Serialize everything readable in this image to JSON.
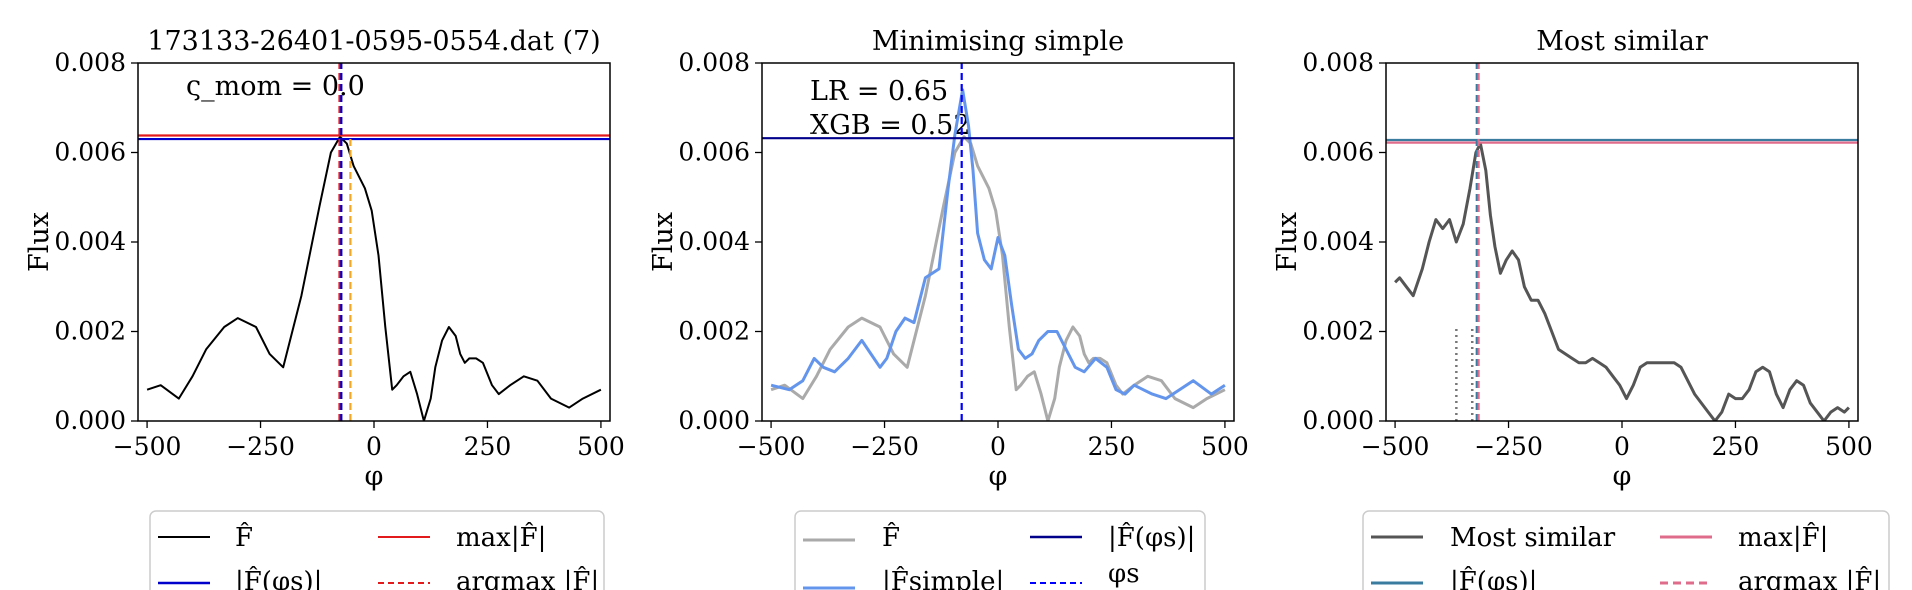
{
  "panels": [
    {
      "title": "173133-26401-0595-0554.dat (7)",
      "annotations": [
        "ς_mom = 0.0"
      ],
      "ylabel": "Flux",
      "xlabel": "φ",
      "legend": [
        {
          "label": "F̂",
          "color": "#000000",
          "dash": "solid"
        },
        {
          "label": "max|F̂|",
          "color": "#e31a1c",
          "dash": "solid"
        },
        {
          "label": "|F̂(φs)|",
          "color": "#0000cc",
          "dash": "solid"
        },
        {
          "label": "argmax |F̂|",
          "color": "#e31a1c",
          "dash": "dashed"
        }
      ]
    },
    {
      "title": "Minimising simple",
      "annotations": [
        "LR = 0.65",
        "XGB = 0.52"
      ],
      "ylabel": "Flux",
      "xlabel": "φ",
      "legend": [
        {
          "label": "F̂",
          "color": "#aaaaaa",
          "dash": "solid"
        },
        {
          "label": "|F̂(φs)|",
          "color": "#00008b",
          "dash": "solid"
        },
        {
          "label": "|F̂simple|",
          "color": "#6495ed",
          "dash": "solid"
        },
        {
          "label": "φs",
          "color": "#0000ff",
          "dash": "dashed"
        }
      ]
    },
    {
      "title": "Most similar",
      "annotations": [],
      "ylabel": "Flux",
      "xlabel": "φ",
      "legend": [
        {
          "label": "Most similar",
          "color": "#555555",
          "dash": "solid"
        },
        {
          "label": "max|F̂|",
          "color": "#e06c8c",
          "dash": "solid"
        },
        {
          "label": "|F̂(φs)|",
          "color": "#3a7ca0",
          "dash": "solid"
        },
        {
          "label": "argmax |F̂|",
          "color": "#e06c8c",
          "dash": "dashed"
        }
      ]
    }
  ],
  "chart_data": [
    {
      "type": "line",
      "title": "173133-26401-0595-0554.dat (7)",
      "xlabel": "φ",
      "ylabel": "Flux",
      "xlim": [
        -520,
        520
      ],
      "ylim": [
        0,
        0.008
      ],
      "xticks": [
        -500,
        -250,
        0,
        250,
        500
      ],
      "yticks": [
        0.0,
        0.002,
        0.004,
        0.006,
        0.008
      ],
      "series": [
        {
          "name": "F̂",
          "color": "#000000",
          "x": [
            -500,
            -470,
            -430,
            -400,
            -370,
            -330,
            -300,
            -260,
            -230,
            -200,
            -160,
            -120,
            -95,
            -75,
            -60,
            -45,
            -20,
            -5,
            10,
            25,
            40,
            50,
            65,
            80,
            95,
            110,
            125,
            135,
            150,
            165,
            180,
            190,
            200,
            210,
            225,
            240,
            260,
            275,
            300,
            330,
            360,
            390,
            410,
            430,
            460,
            500
          ],
          "y": [
            0.0007,
            0.0008,
            0.0005,
            0.001,
            0.0016,
            0.0021,
            0.0023,
            0.0021,
            0.0015,
            0.0012,
            0.0028,
            0.0048,
            0.006,
            0.00635,
            0.0062,
            0.0057,
            0.0052,
            0.0047,
            0.0037,
            0.0021,
            0.0007,
            0.0008,
            0.001,
            0.0011,
            0.0006,
            0.0,
            0.0005,
            0.0012,
            0.0018,
            0.0021,
            0.0019,
            0.0015,
            0.0013,
            0.0014,
            0.0014,
            0.0013,
            0.0008,
            0.0006,
            0.0008,
            0.001,
            0.0009,
            0.0005,
            0.0004,
            0.0003,
            0.0005,
            0.0007
          ]
        }
      ],
      "hlines": [
        {
          "y": 0.00638,
          "color": "#e31a1c",
          "dash": "solid"
        },
        {
          "y": 0.0063,
          "color": "#0000cc",
          "dash": "solid"
        }
      ],
      "vlines": [
        {
          "x": -76,
          "color": "#e31a1c",
          "dash": "dashed"
        },
        {
          "x": -72,
          "color": "#0000cc",
          "dash": "dashed"
        },
        {
          "x": -52,
          "color": "#f5a623",
          "dash": "dashed",
          "y_top": 0.00638
        }
      ]
    },
    {
      "type": "line",
      "title": "Minimising simple",
      "xlabel": "φ",
      "ylabel": "Flux",
      "xlim": [
        -520,
        520
      ],
      "ylim": [
        0,
        0.008
      ],
      "xticks": [
        -500,
        -250,
        0,
        250,
        500
      ],
      "yticks": [
        0.0,
        0.002,
        0.004,
        0.006,
        0.008
      ],
      "series": [
        {
          "name": "F̂",
          "color": "#aaaaaa",
          "x": [
            -500,
            -470,
            -430,
            -400,
            -370,
            -330,
            -300,
            -260,
            -230,
            -200,
            -160,
            -120,
            -95,
            -75,
            -60,
            -45,
            -20,
            -5,
            10,
            25,
            40,
            50,
            65,
            80,
            95,
            110,
            125,
            135,
            150,
            165,
            180,
            190,
            200,
            210,
            225,
            240,
            260,
            275,
            300,
            330,
            360,
            390,
            410,
            430,
            460,
            500
          ],
          "y": [
            0.0007,
            0.0008,
            0.0005,
            0.001,
            0.0016,
            0.0021,
            0.0023,
            0.0021,
            0.0015,
            0.0012,
            0.0028,
            0.0048,
            0.006,
            0.00635,
            0.0062,
            0.0057,
            0.0052,
            0.0047,
            0.0037,
            0.0021,
            0.0007,
            0.0008,
            0.001,
            0.0011,
            0.0006,
            0.0,
            0.0005,
            0.0012,
            0.0018,
            0.0021,
            0.0019,
            0.0015,
            0.0013,
            0.0014,
            0.0014,
            0.0013,
            0.0008,
            0.0006,
            0.0008,
            0.001,
            0.0009,
            0.0005,
            0.0004,
            0.0003,
            0.0005,
            0.0007
          ]
        },
        {
          "name": "|F̂simple|",
          "color": "#6495ed",
          "x": [
            -500,
            -460,
            -430,
            -405,
            -385,
            -360,
            -330,
            -300,
            -280,
            -260,
            -245,
            -225,
            -205,
            -185,
            -160,
            -130,
            -110,
            -95,
            -78,
            -65,
            -55,
            -45,
            -30,
            -15,
            0,
            15,
            30,
            45,
            60,
            75,
            90,
            110,
            130,
            150,
            170,
            190,
            215,
            240,
            260,
            280,
            300,
            320,
            340,
            370,
            400,
            430,
            470,
            500
          ],
          "y": [
            0.0008,
            0.0007,
            0.0009,
            0.0014,
            0.0012,
            0.0011,
            0.0014,
            0.0018,
            0.0015,
            0.0012,
            0.0014,
            0.002,
            0.0023,
            0.0022,
            0.0032,
            0.0034,
            0.0052,
            0.0064,
            0.0074,
            0.0066,
            0.0056,
            0.0042,
            0.0036,
            0.0034,
            0.0041,
            0.0037,
            0.0026,
            0.0016,
            0.0014,
            0.0015,
            0.0018,
            0.002,
            0.002,
            0.0016,
            0.0012,
            0.0011,
            0.0014,
            0.0012,
            0.0007,
            0.0006,
            0.0008,
            0.0007,
            0.0006,
            0.0005,
            0.0007,
            0.0009,
            0.0006,
            0.0008
          ]
        }
      ],
      "hlines": [
        {
          "y": 0.00632,
          "color": "#00008b",
          "dash": "solid"
        }
      ],
      "vlines": [
        {
          "x": -80,
          "color": "#0000ff",
          "dash": "dashed"
        }
      ]
    },
    {
      "type": "line",
      "title": "Most similar",
      "xlabel": "φ",
      "ylabel": "Flux",
      "xlim": [
        -520,
        520
      ],
      "ylim": [
        0,
        0.008
      ],
      "xticks": [
        -500,
        -250,
        0,
        250,
        500
      ],
      "yticks": [
        0.0,
        0.002,
        0.004,
        0.006,
        0.008
      ],
      "series": [
        {
          "name": "Most similar",
          "color": "#555555",
          "x": [
            -500,
            -490,
            -475,
            -460,
            -440,
            -425,
            -410,
            -395,
            -380,
            -365,
            -350,
            -335,
            -322,
            -312,
            -300,
            -290,
            -280,
            -268,
            -255,
            -242,
            -228,
            -215,
            -200,
            -185,
            -170,
            -155,
            -140,
            -125,
            -110,
            -95,
            -80,
            -65,
            -50,
            -35,
            -20,
            -5,
            10,
            25,
            40,
            55,
            70,
            85,
            100,
            115,
            130,
            145,
            160,
            175,
            190,
            205,
            220,
            235,
            250,
            265,
            280,
            295,
            310,
            325,
            340,
            355,
            370,
            385,
            400,
            415,
            430,
            445,
            460,
            475,
            490,
            500
          ],
          "y": [
            0.0031,
            0.0032,
            0.003,
            0.0028,
            0.0034,
            0.004,
            0.0045,
            0.0043,
            0.0045,
            0.004,
            0.0044,
            0.0052,
            0.006,
            0.0062,
            0.0056,
            0.0046,
            0.0039,
            0.0033,
            0.0036,
            0.0038,
            0.0036,
            0.003,
            0.0027,
            0.0027,
            0.0024,
            0.002,
            0.0016,
            0.0015,
            0.0014,
            0.0013,
            0.0013,
            0.0014,
            0.0013,
            0.0012,
            0.001,
            0.0008,
            0.0005,
            0.0008,
            0.0012,
            0.0013,
            0.0013,
            0.0013,
            0.0013,
            0.0013,
            0.0012,
            0.0009,
            0.0006,
            0.0004,
            0.0002,
            0.0,
            0.0002,
            0.0006,
            0.0005,
            0.0005,
            0.0007,
            0.0011,
            0.0012,
            0.0011,
            0.0006,
            0.0003,
            0.0007,
            0.0009,
            0.0008,
            0.0004,
            0.0002,
            0.0,
            0.0002,
            0.0003,
            0.0002,
            0.0003
          ]
        }
      ],
      "hlines": [
        {
          "y": 0.00628,
          "color": "#3a7ca0",
          "dash": "solid"
        },
        {
          "y": 0.00622,
          "color": "#e06c8c",
          "dash": "solid"
        }
      ],
      "vlines": [
        {
          "x": -320,
          "color": "#3a7ca0",
          "dash": "dashed"
        },
        {
          "x": -316,
          "color": "#e06c8c",
          "dash": "dashed"
        },
        {
          "x": -365,
          "color": "#777777",
          "dash": "dotted",
          "y_top": 0.0021
        },
        {
          "x": -330,
          "color": "#777777",
          "dash": "dotted",
          "y_top": 0.0021
        }
      ]
    }
  ]
}
